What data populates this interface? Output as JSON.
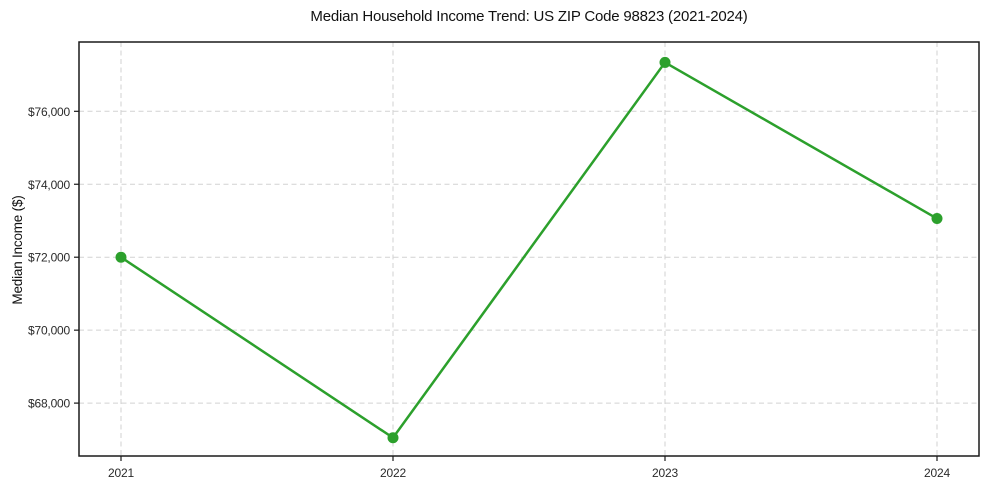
{
  "chart_data": {
    "type": "line",
    "title": "Median Household Income Trend: US ZIP Code 98823 (2021-2024)",
    "xlabel": "",
    "ylabel": "Median Income ($)",
    "categories": [
      "2021",
      "2022",
      "2023",
      "2024"
    ],
    "series": [
      {
        "name": "median-household-income",
        "values": [
          72000,
          67050,
          77340,
          73060
        ],
        "color": "#2ca02c",
        "marker": "circle"
      }
    ],
    "y_ticks": [
      68000,
      70000,
      72000,
      74000,
      76000
    ],
    "y_tick_labels": [
      "$68,000",
      "$70,000",
      "$72,000",
      "$74,000",
      "$76,000"
    ],
    "ylim": [
      66550,
      77900
    ],
    "grid": {
      "visible": true,
      "style": "dashed",
      "color": "#d2d2d2"
    },
    "legend": "none",
    "axis_color": "#1a1a1a",
    "tick_label_color": "#2b2b2b",
    "line_width": 2.5,
    "marker_radius": 5.5
  }
}
